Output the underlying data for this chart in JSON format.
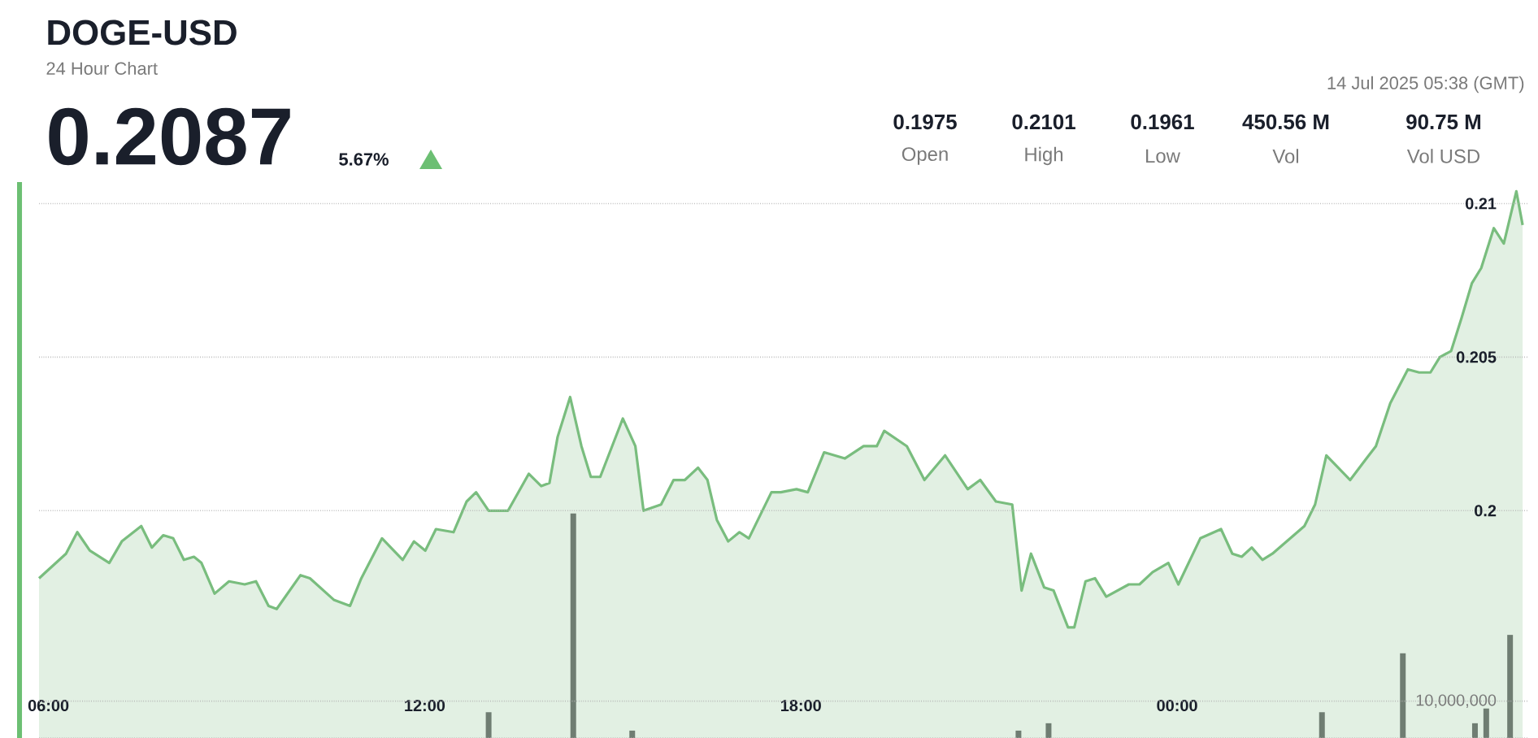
{
  "chart_data": {
    "type": "area",
    "title": "DOGE-USD",
    "subtitle": "24 Hour Chart",
    "annotations": [
      "0.2087",
      "5.67%",
      "14 Jul 2025 05:38 (GMT)",
      "0.1975",
      "Open",
      "0.2101",
      "High",
      "0.1961",
      "Low",
      "450.56 M",
      "Vol",
      "90.75 M",
      "Vol USD"
    ],
    "xlim": [
      5.85,
      29.6
    ],
    "ylim": [
      0.1926,
      0.2107
    ],
    "y2lim": [
      0,
      151000000
    ],
    "xticks": [
      {
        "value": 6,
        "label": "06:00"
      },
      {
        "value": 12,
        "label": "12:00"
      },
      {
        "value": 18,
        "label": "18:00"
      },
      {
        "value": 24,
        "label": "00:00"
      }
    ],
    "yticks": [
      0.2,
      0.205,
      0.21
    ],
    "y2ticks": [
      {
        "value": 0,
        "label": null
      },
      {
        "value": 10000000,
        "label": "10,000,000"
      }
    ],
    "grid": "y",
    "series": [
      {
        "color": "#79bd7e",
        "x": [
          5.85,
          6.28,
          6.46,
          6.66,
          6.97,
          7.17,
          7.48,
          7.65,
          7.83,
          7.99,
          8.16,
          8.32,
          8.44,
          8.65,
          8.88,
          9.13,
          9.31,
          9.51,
          9.64,
          10.02,
          10.17,
          10.55,
          10.81,
          10.99,
          11.32,
          11.65,
          11.83,
          12.01,
          12.18,
          12.46,
          12.67,
          12.82,
          13.02,
          13.33,
          13.66,
          13.86,
          13.99,
          14.12,
          14.32,
          14.5,
          14.65,
          14.8,
          15.16,
          15.36,
          15.49,
          15.77,
          15.97,
          16.15,
          16.36,
          16.51,
          16.66,
          16.84,
          17.02,
          17.17,
          17.53,
          17.68,
          17.93,
          18.11,
          18.37,
          18.7,
          19.0,
          19.21,
          19.33,
          19.69,
          19.97,
          20.3,
          20.66,
          20.86,
          21.11,
          21.37,
          21.52,
          21.67,
          21.88,
          22.03,
          22.26,
          22.36,
          22.54,
          22.69,
          22.87,
          23.23,
          23.4,
          23.61,
          23.86,
          24.02,
          24.37,
          24.7,
          24.88,
          25.03,
          25.19,
          25.36,
          25.52,
          26.03,
          26.2,
          26.38,
          26.76,
          27.02,
          27.17,
          27.4,
          27.68,
          27.86,
          28.04,
          28.19,
          28.37,
          28.54,
          28.7,
          28.85,
          29.05,
          29.21,
          29.41,
          29.51
        ],
        "values": [
          0.1978,
          0.1986,
          0.1993,
          0.1987,
          0.1983,
          0.199,
          0.1995,
          0.1988,
          0.1992,
          0.1991,
          0.1984,
          0.1985,
          0.1983,
          0.1973,
          0.1977,
          0.1976,
          0.1977,
          0.1969,
          0.1968,
          0.1979,
          0.1978,
          0.1971,
          0.1969,
          0.1978,
          0.1991,
          0.1984,
          0.199,
          0.1987,
          0.1994,
          0.1993,
          0.2003,
          0.2006,
          0.2,
          0.2,
          0.2012,
          0.2008,
          0.2009,
          0.2024,
          0.2037,
          0.2021,
          0.2011,
          0.2011,
          0.203,
          0.2021,
          0.2,
          0.2002,
          0.201,
          0.201,
          0.2014,
          0.201,
          0.1997,
          0.199,
          0.1993,
          0.1991,
          0.2006,
          0.2006,
          0.2007,
          0.2006,
          0.2019,
          0.2017,
          0.2021,
          0.2021,
          0.2026,
          0.2021,
          0.201,
          0.2018,
          0.2007,
          0.201,
          0.2003,
          0.2002,
          0.1974,
          0.1986,
          0.1975,
          0.1974,
          0.1962,
          0.1962,
          0.1977,
          0.1978,
          0.1972,
          0.1976,
          0.1976,
          0.198,
          0.1983,
          0.1976,
          0.1991,
          0.1994,
          0.1986,
          0.1985,
          0.1988,
          0.1984,
          0.1986,
          0.1995,
          0.2002,
          0.2018,
          0.201,
          0.2017,
          0.2021,
          0.2035,
          0.2046,
          0.2045,
          0.2045,
          0.205,
          0.2052,
          0.2063,
          0.2074,
          0.2079,
          0.2092,
          0.2087,
          0.2104,
          0.2093
        ]
      },
      {
        "type": "bar",
        "axis": "y2",
        "color": "#6f7d72",
        "x": [
          13.02,
          14.37,
          15.31,
          21.47,
          21.95,
          26.31,
          27.6,
          28.75,
          28.93,
          29.31
        ],
        "values": [
          7000000,
          61000000,
          2000000,
          2000000,
          4000000,
          7000000,
          23000000,
          4000000,
          8000000,
          28000000
        ]
      }
    ]
  }
}
